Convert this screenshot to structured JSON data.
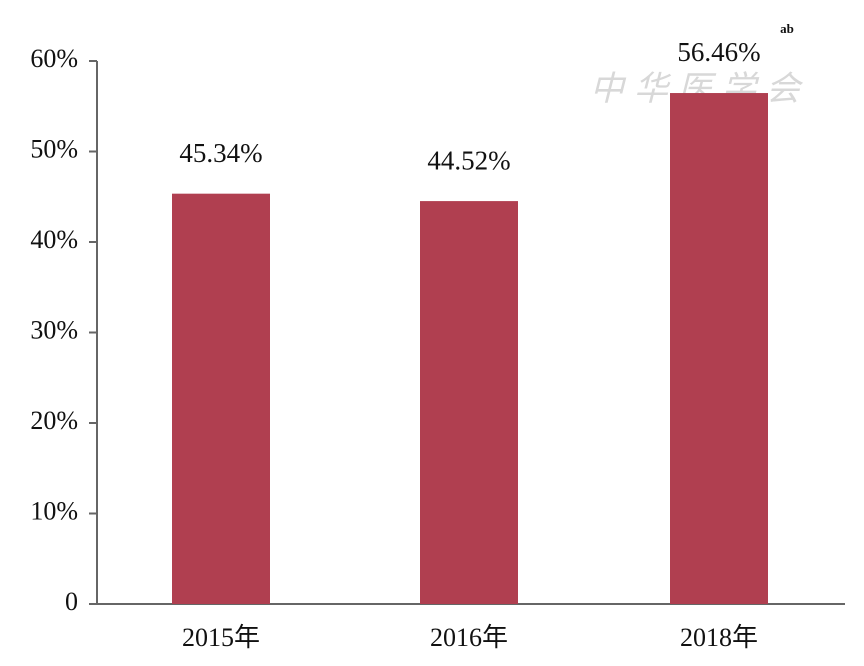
{
  "chart_data": {
    "type": "bar",
    "categories": [
      "2015年",
      "2016年",
      "2018年"
    ],
    "values": [
      45.34,
      44.52,
      56.46
    ],
    "value_labels": [
      "45.34%",
      "44.52%",
      "56.46%"
    ],
    "color": "#b03f50",
    "ylim": [
      0,
      60
    ],
    "yticks": [
      0,
      {
        "value": 10,
        "label": "10%"
      },
      {
        "value": 20,
        "label": "20%"
      },
      {
        "value": 30,
        "label": "30%"
      },
      {
        "value": 40,
        "label": "40%"
      },
      {
        "value": 50,
        "label": "50%"
      },
      {
        "value": 60,
        "label": "60%"
      }
    ],
    "annotation": "ab",
    "watermark": "中华医学会",
    "grid": false
  }
}
